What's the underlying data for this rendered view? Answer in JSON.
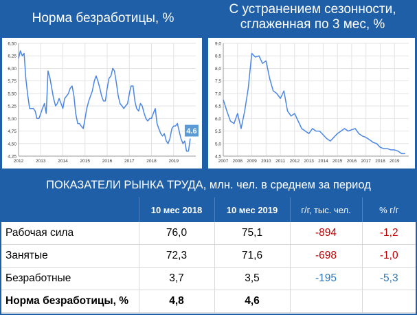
{
  "titles": {
    "left": "Норма безработицы, %",
    "right_line1": "С устранением сезонности,",
    "right_line2": "сглаженная по 3 мес, %"
  },
  "chart_data": [
    {
      "type": "line",
      "xlabel": "",
      "ylabel": "",
      "x_ticks": [
        "2012",
        "2013",
        "2014",
        "2015",
        "2016",
        "2017",
        "2018",
        "2019"
      ],
      "y_ticks": [
        "6,50",
        "6,25",
        "6,00",
        "5,75",
        "5,50",
        "5,25",
        "5,00",
        "4,75",
        "4,50",
        "4,25"
      ],
      "ylim": [
        4.25,
        6.5
      ],
      "xlim": [
        2012,
        2020
      ],
      "grid": true,
      "line_color": "#4a86e8",
      "annotation": "4.6",
      "annotation_color": "#5b9bd5",
      "x": [
        2012.0,
        2012.08,
        2012.17,
        2012.25,
        2012.33,
        2012.42,
        2012.5,
        2012.58,
        2012.67,
        2012.75,
        2012.83,
        2012.92,
        2013.0,
        2013.08,
        2013.17,
        2013.25,
        2013.33,
        2013.42,
        2013.5,
        2013.58,
        2013.67,
        2013.75,
        2013.83,
        2013.92,
        2014.0,
        2014.08,
        2014.17,
        2014.25,
        2014.33,
        2014.42,
        2014.5,
        2014.58,
        2014.67,
        2014.75,
        2014.83,
        2014.92,
        2015.0,
        2015.08,
        2015.17,
        2015.25,
        2015.33,
        2015.42,
        2015.5,
        2015.58,
        2015.67,
        2015.75,
        2015.83,
        2015.92,
        2016.0,
        2016.08,
        2016.17,
        2016.25,
        2016.33,
        2016.42,
        2016.5,
        2016.58,
        2016.67,
        2016.75,
        2016.83,
        2016.92,
        2017.0,
        2017.08,
        2017.17,
        2017.25,
        2017.33,
        2017.42,
        2017.5,
        2017.58,
        2017.67,
        2017.75,
        2017.83,
        2017.92,
        2018.0,
        2018.08,
        2018.17,
        2018.25,
        2018.33,
        2018.42,
        2018.5,
        2018.58,
        2018.67,
        2018.75,
        2018.83,
        2018.92,
        2019.0,
        2019.08,
        2019.17,
        2019.25,
        2019.33,
        2019.42,
        2019.5,
        2019.58,
        2019.67,
        2019.75
      ],
      "values": [
        6.2,
        6.35,
        6.25,
        6.3,
        5.8,
        5.45,
        5.2,
        5.2,
        5.2,
        5.15,
        5.0,
        5.0,
        5.1,
        5.2,
        5.3,
        5.1,
        5.95,
        5.8,
        5.6,
        5.4,
        5.25,
        5.3,
        5.4,
        5.3,
        5.2,
        5.4,
        5.45,
        5.5,
        5.6,
        5.65,
        5.45,
        5.1,
        4.9,
        4.9,
        4.85,
        4.8,
        5.0,
        5.2,
        5.35,
        5.45,
        5.55,
        5.75,
        5.85,
        5.75,
        5.6,
        5.45,
        5.35,
        5.35,
        5.6,
        5.8,
        5.85,
        6.0,
        5.95,
        5.7,
        5.45,
        5.3,
        5.25,
        5.2,
        5.25,
        5.3,
        5.5,
        5.65,
        5.65,
        5.35,
        5.2,
        5.15,
        5.3,
        5.25,
        5.1,
        5.0,
        4.95,
        5.0,
        5.0,
        5.1,
        5.2,
        4.9,
        4.8,
        4.7,
        4.65,
        4.7,
        4.55,
        4.5,
        4.6,
        4.8,
        4.85,
        4.85,
        4.9,
        4.75,
        4.6,
        4.5,
        4.55,
        4.35,
        4.35,
        4.6
      ]
    },
    {
      "type": "line",
      "xlabel": "",
      "ylabel": "",
      "x_ticks": [
        "2007",
        "2008",
        "2009",
        "2010",
        "2011",
        "2012",
        "2013",
        "2014",
        "2015",
        "2016",
        "2017",
        "2018",
        "2019"
      ],
      "y_ticks": [
        "9,0",
        "8,5",
        "8,0",
        "7,5",
        "7,0",
        "6,5",
        "6,0",
        "5,5",
        "5,0",
        "4,5"
      ],
      "ylim": [
        4.5,
        9.0
      ],
      "xlim": [
        2007,
        2020
      ],
      "grid": true,
      "line_color": "#4a86e8",
      "x": [
        2007.0,
        2007.25,
        2007.5,
        2007.75,
        2008.0,
        2008.25,
        2008.5,
        2008.75,
        2009.0,
        2009.25,
        2009.5,
        2009.75,
        2010.0,
        2010.25,
        2010.5,
        2010.75,
        2011.0,
        2011.25,
        2011.5,
        2011.75,
        2012.0,
        2012.25,
        2012.5,
        2012.75,
        2013.0,
        2013.25,
        2013.5,
        2013.75,
        2014.0,
        2014.25,
        2014.5,
        2014.75,
        2015.0,
        2015.25,
        2015.5,
        2015.75,
        2016.0,
        2016.25,
        2016.5,
        2016.75,
        2017.0,
        2017.25,
        2017.5,
        2017.75,
        2018.0,
        2018.25,
        2018.5,
        2018.75,
        2019.0,
        2019.25,
        2019.5,
        2019.75
      ],
      "values": [
        6.75,
        6.3,
        5.9,
        5.8,
        6.2,
        5.6,
        6.3,
        7.2,
        8.6,
        8.45,
        8.5,
        8.2,
        8.3,
        7.6,
        7.1,
        7.0,
        6.8,
        7.1,
        6.3,
        6.1,
        6.2,
        5.9,
        5.6,
        5.5,
        5.4,
        5.6,
        5.5,
        5.5,
        5.35,
        5.2,
        5.1,
        5.25,
        5.4,
        5.5,
        5.6,
        5.5,
        5.55,
        5.6,
        5.4,
        5.3,
        5.25,
        5.15,
        5.05,
        5.0,
        4.85,
        4.8,
        4.8,
        4.75,
        4.75,
        4.7,
        4.6,
        4.6
      ]
    }
  ],
  "table": {
    "title": "ПОКАЗАТЕЛИ РЫНКА ТРУДА, млн. чел. в среднем за период",
    "headers": [
      "",
      "10 мес 2018",
      "10 мес 2019",
      "г/г, тыс. чел.",
      "% г/г"
    ],
    "rows": [
      {
        "label": "Рабочая сила",
        "v2018": "76,0",
        "v2019": "75,1",
        "yoy_abs": "-894",
        "yoy_pct": "-1,2",
        "color": "red"
      },
      {
        "label": "Занятые",
        "v2018": "72,3",
        "v2019": "71,6",
        "yoy_abs": "-698",
        "yoy_pct": "-1,0",
        "color": "red"
      },
      {
        "label": "Безработные",
        "v2018": "3,7",
        "v2019": "3,5",
        "yoy_abs": "-195",
        "yoy_pct": "-5,3",
        "color": "blue"
      },
      {
        "label": "Норма безработицы, %",
        "v2018": "4,8",
        "v2019": "4,6",
        "yoy_abs": "",
        "yoy_pct": "",
        "color": "none"
      }
    ]
  }
}
